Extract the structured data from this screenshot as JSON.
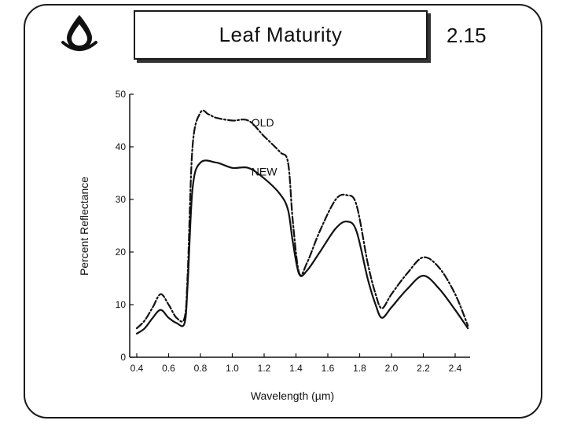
{
  "header": {
    "title": "Leaf Maturity",
    "slide_number": "2.15",
    "logo_icon": "water-drop-icon"
  },
  "chart_data": {
    "type": "line",
    "xlabel": "Wavelength  (µm)",
    "ylabel": "Percent Reflectance",
    "xlim": [
      0.4,
      2.5
    ],
    "ylim": [
      0,
      50
    ],
    "x_ticks": [
      0.4,
      0.6,
      0.8,
      1.0,
      1.2,
      1.4,
      1.6,
      1.8,
      2.0,
      2.2,
      2.4
    ],
    "x_tick_labels": [
      "0.4",
      "0.6",
      "0.8",
      "1.0",
      "1.2",
      "1.4",
      "1.6",
      "1.8",
      "2.0",
      "2.2",
      "2.4"
    ],
    "y_ticks": [
      0,
      10,
      20,
      30,
      40,
      50
    ],
    "y_tick_labels": [
      "0",
      "10",
      "20",
      "30",
      "40",
      "50"
    ],
    "grid": false,
    "series": [
      {
        "name": "OLD",
        "style": "dash-dot",
        "x": [
          0.4,
          0.45,
          0.5,
          0.55,
          0.6,
          0.65,
          0.7,
          0.72,
          0.75,
          0.8,
          0.85,
          0.9,
          1.0,
          1.1,
          1.2,
          1.3,
          1.35,
          1.38,
          1.42,
          1.47,
          1.55,
          1.65,
          1.72,
          1.78,
          1.85,
          1.9,
          1.94,
          2.0,
          2.1,
          2.2,
          2.3,
          2.4,
          2.48
        ],
        "y": [
          5.5,
          7,
          9.5,
          12,
          10,
          7.5,
          7.5,
          16,
          40,
          46.5,
          46.2,
          45.5,
          45,
          45,
          42,
          39,
          37,
          26,
          16,
          18,
          24,
          30,
          30.8,
          29,
          18,
          12,
          9.3,
          12,
          16,
          19,
          17,
          12,
          6
        ]
      },
      {
        "name": "NEW",
        "style": "solid",
        "x": [
          0.4,
          0.45,
          0.5,
          0.55,
          0.6,
          0.65,
          0.7,
          0.72,
          0.75,
          0.8,
          0.9,
          1.0,
          1.1,
          1.2,
          1.3,
          1.35,
          1.38,
          1.42,
          1.47,
          1.55,
          1.65,
          1.72,
          1.78,
          1.85,
          1.9,
          1.94,
          2.0,
          2.1,
          2.2,
          2.3,
          2.4,
          2.48
        ],
        "y": [
          4.5,
          5.5,
          7.5,
          9,
          7.5,
          6.5,
          6.5,
          14,
          32,
          37,
          37,
          36,
          36,
          34,
          31,
          28,
          22,
          15.8,
          16.5,
          20,
          24.5,
          25.8,
          24,
          15,
          10,
          7.5,
          9.5,
          13,
          15.5,
          13,
          9,
          5.5
        ]
      }
    ]
  }
}
